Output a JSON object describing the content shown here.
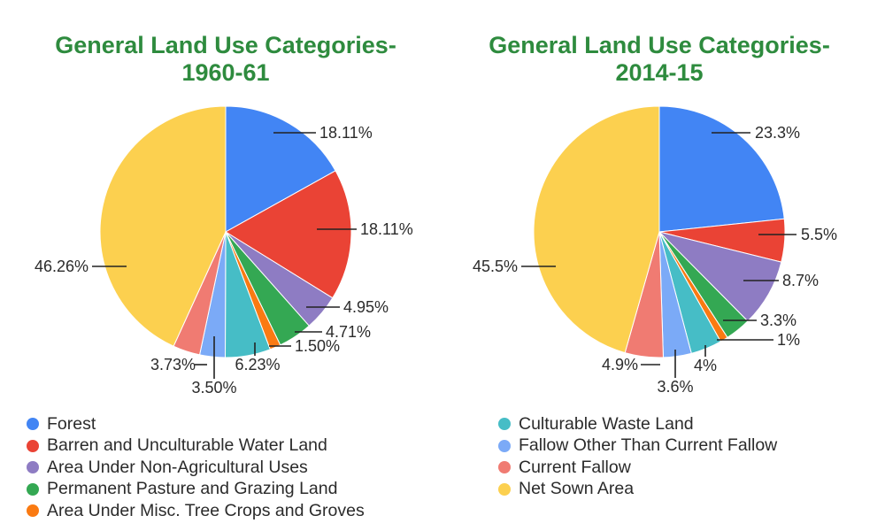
{
  "chart_data": [
    {
      "type": "pie",
      "title": [
        "General Land Use Categories-",
        "1960-61"
      ],
      "slices": [
        {
          "label": "Forest",
          "value": 18.11,
          "display": "18.11%",
          "color": "#4285f4"
        },
        {
          "label": "Barren and Unculturable Water Land",
          "value": 18.11,
          "display": "18.11%",
          "color": "#ea4335"
        },
        {
          "label": "Area Under Non-Agricultural Uses",
          "value": 4.95,
          "display": "4.95%",
          "color": "#8e7cc3"
        },
        {
          "label": "Permanent Pasture and Grazing Land",
          "value": 4.71,
          "display": "4.71%",
          "color": "#34a853"
        },
        {
          "label": "Area Under Misc. Tree Crops and Groves",
          "value": 1.5,
          "display": "1.50%",
          "color": "#fa7a12"
        },
        {
          "label": "Culturable Waste Land",
          "value": 6.23,
          "display": "6.23%",
          "color": "#46bdc6"
        },
        {
          "label": "Fallow Other Than Current Fallow",
          "value": 3.5,
          "display": "3.50%",
          "color": "#7baaf7"
        },
        {
          "label": "Current Fallow",
          "value": 3.73,
          "display": "3.73%",
          "color": "#f07b72"
        },
        {
          "label": "Net Sown Area",
          "value": 46.26,
          "display": "46.26%",
          "color": "#fcd04f"
        }
      ]
    },
    {
      "type": "pie",
      "title": [
        "General Land Use Categories-",
        "2014-15"
      ],
      "slices": [
        {
          "label": "Forest",
          "value": 23.3,
          "display": "23.3%",
          "color": "#4285f4"
        },
        {
          "label": "Barren and Unculturable Water Land",
          "value": 5.5,
          "display": "5.5%",
          "color": "#ea4335"
        },
        {
          "label": "Area Under Non-Agricultural Uses",
          "value": 8.7,
          "display": "8.7%",
          "color": "#8e7cc3"
        },
        {
          "label": "Permanent Pasture and Grazing Land",
          "value": 3.3,
          "display": "3.3%",
          "color": "#34a853"
        },
        {
          "label": "Area Under Misc. Tree Crops and Groves",
          "value": 1,
          "display": "1%",
          "color": "#fa7a12"
        },
        {
          "label": "Culturable Waste Land",
          "value": 4,
          "display": "4%",
          "color": "#46bdc6"
        },
        {
          "label": "Fallow Other Than Current Fallow",
          "value": 3.6,
          "display": "3.6%",
          "color": "#7baaf7"
        },
        {
          "label": "Current Fallow",
          "value": 4.9,
          "display": "4.9%",
          "color": "#f07b72"
        },
        {
          "label": "Net Sown Area",
          "value": 45.5,
          "display": "45.5%",
          "color": "#fcd04f"
        }
      ]
    }
  ],
  "legend": {
    "left": [
      {
        "label": "Forest",
        "color": "#4285f4"
      },
      {
        "label": "Barren and Unculturable Water Land",
        "color": "#ea4335"
      },
      {
        "label": "Area Under Non-Agricultural Uses",
        "color": "#8e7cc3"
      },
      {
        "label": "Permanent Pasture and Grazing Land",
        "color": "#34a853"
      },
      {
        "label": "Area Under Misc. Tree Crops and Groves",
        "color": "#fa7a12"
      }
    ],
    "right": [
      {
        "label": "Culturable Waste Land",
        "color": "#46bdc6"
      },
      {
        "label": "Fallow Other Than Current Fallow",
        "color": "#7baaf7"
      },
      {
        "label": "Current Fallow",
        "color": "#f07b72"
      },
      {
        "label": "Net Sown Area",
        "color": "#fcd04f"
      }
    ]
  }
}
